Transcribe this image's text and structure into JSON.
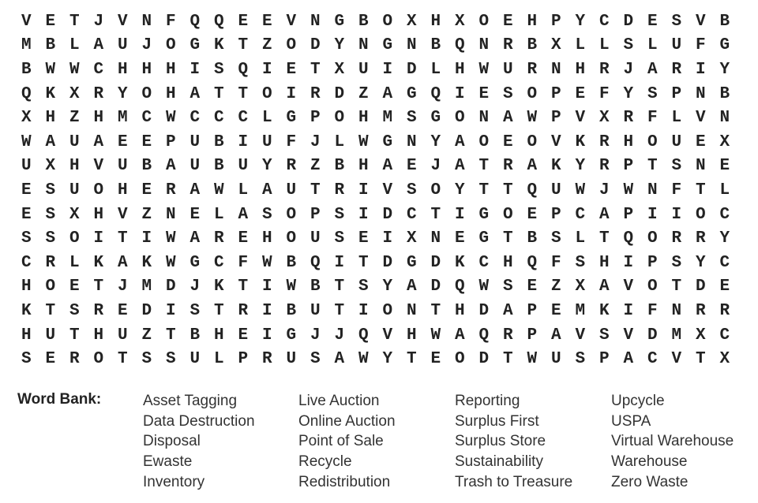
{
  "grid": {
    "rows": [
      "VETJVNFQQEEVNGBOXHXOEHPYCDESVB",
      "MBLAUJOGKTZODYNGNBQNRBXLLSLUFG",
      "BWWCHHHISQIETXUIDLHWURNHRJARIY",
      "QKXRYOHATTOIRDZAGQIESOPEFYSPNB",
      "XHZHMCWCCCLGPOHMSGONAWPVXRFLVN",
      "WAUAEEPUBIUFJLWGNYAOEOVKRHOUEX",
      "UXHVUBAUBUYRZBHAEJATRAKYRPTSNE",
      "ESUOHERAWLAUTRIVSOYTTQUWJWNFTL",
      "ESXHVZNELASOPSIDCTIGOEPCAPIIOC",
      "SSOITIWAREHOUSEIXNEGTBSLTQORRY",
      "CRLKAKWGCFWBQITDGDKCHQFSHIPSYC",
      "HOETJMDJKTIWBTSYADQWSEZXAVOTDE",
      "KTSREDISTRIBUTIONTHDAPEMKIFNRR",
      "HUTHUZTBHEIGJJQVHWAQRPAVSVDMXC",
      "SEROTSSULPRUSAWYTEODTWUSPACVTX"
    ]
  },
  "word_bank": {
    "title": "Word Bank:",
    "columns": [
      [
        "Asset Tagging",
        "Data Destruction",
        "Disposal",
        "Ewaste",
        "Inventory"
      ],
      [
        "Live Auction",
        "Online Auction",
        "Point of Sale",
        "Recycle",
        "Redistribution"
      ],
      [
        "Reporting",
        "Surplus First",
        "Surplus Store",
        "Sustainability",
        "Trash to Treasure"
      ],
      [
        "Upcycle",
        "USPA",
        "Virtual Warehouse",
        "Warehouse",
        "Zero Waste"
      ]
    ]
  }
}
